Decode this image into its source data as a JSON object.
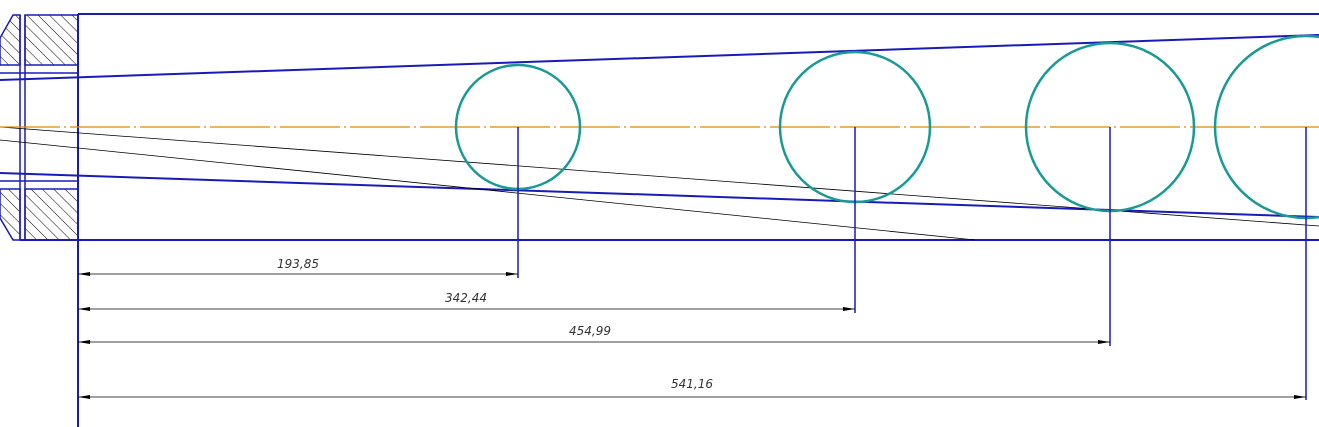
{
  "drawing": {
    "colors": {
      "outline": "#1a1ab8",
      "circle": "#1a9a94",
      "centerline": "#e08a00",
      "thin": "#000000",
      "dimension": "#000000",
      "hatch": "#000000"
    },
    "dimensions": [
      {
        "label": "193,85",
        "value": 193.85
      },
      {
        "label": "342,44",
        "value": 342.44
      },
      {
        "label": "454,99",
        "value": 454.99
      },
      {
        "label": "541,16",
        "value": 541.16
      }
    ]
  }
}
